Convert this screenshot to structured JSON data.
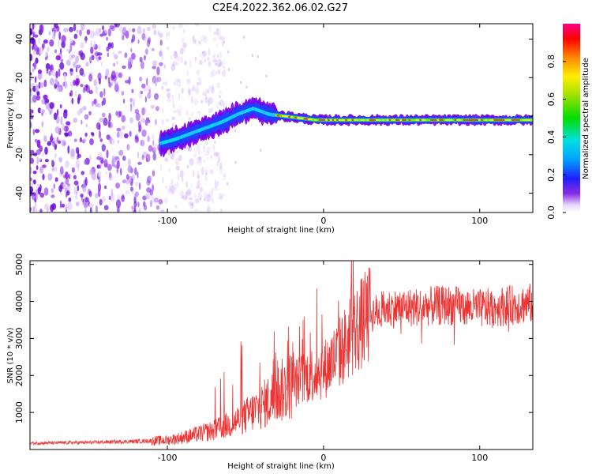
{
  "title": "C2E4.2022.362.06.02.G27",
  "chart_data": [
    {
      "type": "heatmap",
      "name": "spectrogram",
      "xlabel": "Height of straight line (km)",
      "ylabel": "Frequency (Hz)",
      "xlim": [
        -188,
        134
      ],
      "ylim": [
        -50,
        48
      ],
      "xticks": [
        -100,
        0,
        100
      ],
      "yticks": [
        40,
        20,
        0,
        -20,
        -40
      ],
      "colorbar": {
        "label": "Normalized spectral amplitude",
        "range": [
          0,
          1
        ],
        "ticks": [
          0.0,
          0.2,
          0.4,
          0.6,
          0.8
        ]
      },
      "ridge": {
        "x": [
          -104,
          -95,
          -85,
          -75,
          -65,
          -55,
          -45,
          -35,
          -25,
          -15,
          -5,
          5,
          20,
          40,
          60,
          80,
          95,
          110,
          134
        ],
        "freq": [
          -14,
          -12,
          -9,
          -6,
          -3,
          1,
          4,
          1,
          0,
          -1,
          -2,
          -2,
          -2,
          -2,
          -2,
          -2,
          -2,
          -2,
          -2
        ]
      },
      "noise_region_x": [
        -188,
        -75
      ]
    },
    {
      "type": "line",
      "name": "snr",
      "xlabel": "Height of straight line (km)",
      "ylabel": "SNR (10 * v/v)",
      "xlim": [
        -188,
        134
      ],
      "ylim": [
        0,
        5100
      ],
      "xticks": [
        -100,
        0,
        100
      ],
      "yticks": [
        1000,
        2000,
        3000,
        4000,
        5000
      ],
      "color": "#ee3333",
      "trend": {
        "x": [
          -188,
          -150,
          -120,
          -100,
          -90,
          -80,
          -70,
          -60,
          -50,
          -40,
          -30,
          -20,
          -10,
          0,
          10,
          20,
          30,
          40,
          60,
          80,
          100,
          120,
          134
        ],
        "snr": [
          170,
          190,
          220,
          250,
          330,
          420,
          520,
          680,
          900,
          1150,
          1500,
          1750,
          2000,
          2150,
          2600,
          3200,
          3650,
          3800,
          3850,
          3900,
          3800,
          3900,
          3950
        ]
      }
    }
  ]
}
